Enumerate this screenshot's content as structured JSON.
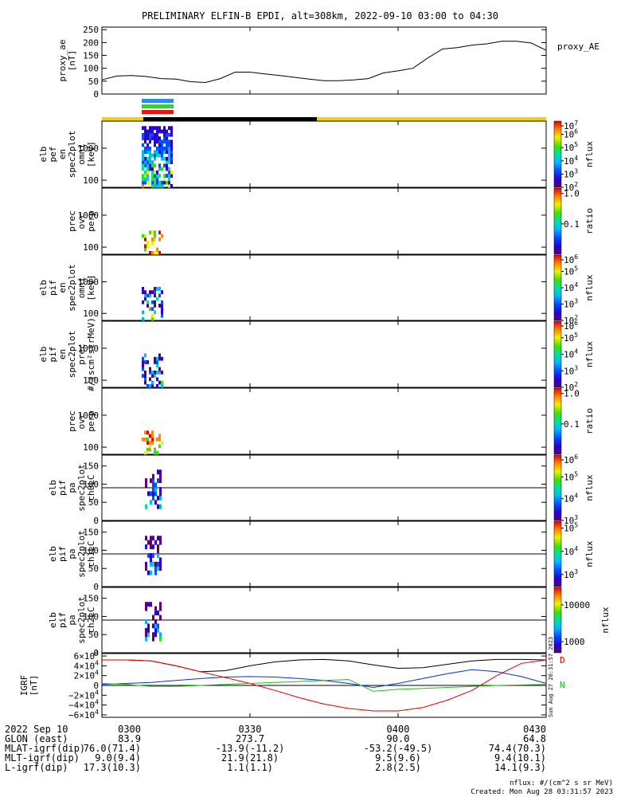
{
  "title": "PRELIMINARY ELFIN-B EPDI, alt=308km, 2022-09-10 03:00 to 04:30",
  "colors": {
    "sunlight": "#f5d000",
    "shadow": "#000000",
    "bar_blue": "#2a8cf0",
    "bar_green": "#22dd22",
    "bar_red": "#ee1111",
    "ae_line": "#000000",
    "bx": "#000000",
    "by": "#0033cc",
    "bz": "#dd0000",
    "bt": "#22bb22"
  },
  "chart_data": [
    {
      "type": "line",
      "name": "proxy_ae",
      "ylabel_lines": [
        "proxy_ae",
        "[nT]"
      ],
      "legend": "proxy_AE",
      "ylim": [
        0,
        260
      ],
      "yticks": [
        "250",
        "200",
        "150",
        "100",
        "50",
        "0"
      ],
      "ytick_values": [
        250,
        200,
        150,
        100,
        50,
        0
      ],
      "x_minutes": [
        0,
        3,
        6,
        9,
        12,
        15,
        18,
        21,
        24,
        27,
        30,
        33,
        36,
        39,
        42,
        45,
        48,
        51,
        54,
        57,
        60,
        63,
        66,
        69,
        72,
        75,
        78,
        81,
        84,
        87,
        90
      ],
      "values": [
        55,
        70,
        72,
        68,
        60,
        58,
        48,
        45,
        60,
        85,
        85,
        78,
        72,
        65,
        58,
        52,
        52,
        55,
        60,
        82,
        90,
        100,
        140,
        175,
        180,
        190,
        195,
        205,
        205,
        198,
        170
      ]
    },
    {
      "type": "heatmap",
      "name": "elb_pef_en_spec2plot_omni",
      "ylabel_lines": [
        "elb",
        "pef",
        "en",
        "spec2plot",
        "omni",
        "[keV]"
      ],
      "yscale": "log",
      "ylim": [
        60,
        7000
      ],
      "yticks": [
        "1000",
        "100"
      ],
      "ytick_values": [
        1000,
        100
      ],
      "colorbar": {
        "label": "nflux",
        "scale": "log",
        "range": [
          100,
          10000000
        ],
        "ticks": [
          {
            "base": "10",
            "exp": "7",
            "value": 10000000
          },
          {
            "base": "10",
            "exp": "6",
            "value": 1000000
          },
          {
            "base": "10",
            "exp": "5",
            "value": 100000
          },
          {
            "base": "10",
            "exp": "4",
            "value": 10000
          },
          {
            "base": "10",
            "exp": "3",
            "value": 1000
          },
          {
            "base": "10",
            "exp": "2",
            "value": 100
          }
        ]
      }
    },
    {
      "type": "heatmap",
      "name": "prec_ovr_perp",
      "ylabel_lines": [
        "prec",
        "ovr",
        "perp"
      ],
      "yscale": "log",
      "ylim": [
        60,
        7000
      ],
      "yticks": [
        "1000",
        "100"
      ],
      "ytick_values": [
        1000,
        100
      ],
      "colorbar": {
        "label": "ratio",
        "scale": "log",
        "range": [
          0.01,
          1.5
        ],
        "ticks": [
          {
            "text": "1.0",
            "value": 1.0
          },
          {
            "text": "0.1",
            "value": 0.1
          }
        ]
      }
    },
    {
      "type": "heatmap",
      "name": "elb_pif_en_spec2plot_omni",
      "ylabel_lines": [
        "elb",
        "pif",
        "en",
        "spec2plot",
        "omni",
        "[keV]"
      ],
      "yscale": "log",
      "ylim": [
        60,
        7000
      ],
      "yticks": [
        "1000",
        "100"
      ],
      "ytick_values": [
        1000,
        100
      ],
      "colorbar": {
        "label": "nflux",
        "scale": "log",
        "range": [
          100,
          1000000
        ],
        "ticks": [
          {
            "base": "10",
            "exp": "6",
            "value": 1000000
          },
          {
            "base": "10",
            "exp": "5",
            "value": 100000
          },
          {
            "base": "10",
            "exp": "4",
            "value": 10000
          },
          {
            "base": "10",
            "exp": "3",
            "value": 1000
          },
          {
            "base": "10",
            "exp": "2",
            "value": 100
          }
        ]
      }
    },
    {
      "type": "heatmap",
      "name": "elb_pif_en_spec2plot_prec",
      "ylabel_lines": [
        "elb",
        "pif",
        "en",
        "spec2plot",
        "prec",
        "#/(scm²strMeV)"
      ],
      "yscale": "log",
      "ylim": [
        60,
        7000
      ],
      "yticks": [
        "1000",
        "100"
      ],
      "ytick_values": [
        1000,
        100
      ],
      "colorbar": {
        "label": "nflux",
        "scale": "log",
        "range": [
          100,
          1000000
        ],
        "ticks": [
          {
            "base": "10",
            "exp": "6",
            "value": 1000000
          },
          {
            "base": "10",
            "exp": "5",
            "value": 100000
          },
          {
            "base": "10",
            "exp": "4",
            "value": 10000
          },
          {
            "base": "10",
            "exp": "3",
            "value": 1000
          },
          {
            "base": "10",
            "exp": "2",
            "value": 100
          }
        ]
      }
    },
    {
      "type": "heatmap",
      "name": "prec_ovr_perp_2",
      "ylabel_lines": [
        "prec",
        "ovr",
        "perp"
      ],
      "yscale": "log",
      "ylim": [
        60,
        7000
      ],
      "yticks": [
        "1000",
        "100"
      ],
      "ytick_values": [
        1000,
        100
      ],
      "colorbar": {
        "label": "ratio",
        "scale": "log",
        "range": [
          0.01,
          1.5
        ],
        "ticks": [
          {
            "text": "1.0",
            "value": 1.0
          },
          {
            "text": "0.1",
            "value": 0.1
          }
        ]
      }
    },
    {
      "type": "heatmap",
      "name": "elb_pif_pa_spec2plot_ch0LC",
      "ylabel_lines": [
        "elb",
        "pif",
        "pa",
        "spec2plot",
        "ch0LC"
      ],
      "ylim": [
        0,
        180
      ],
      "yticks": [
        "150",
        "100",
        "50",
        "0"
      ],
      "ytick_values": [
        150,
        100,
        50,
        0
      ],
      "refline": 90,
      "colorbar": {
        "label": "nflux",
        "scale": "log",
        "range": [
          1000,
          1000000
        ],
        "ticks": [
          {
            "base": "10",
            "exp": "6",
            "value": 1000000
          },
          {
            "base": "10",
            "exp": "5",
            "value": 100000
          },
          {
            "base": "10",
            "exp": "4",
            "value": 10000
          },
          {
            "base": "10",
            "exp": "3",
            "value": 1000
          }
        ]
      }
    },
    {
      "type": "heatmap",
      "name": "elb_pif_pa_spec2plot_ch1LC",
      "ylabel_lines": [
        "elb",
        "pif",
        "pa",
        "spec2plot",
        "ch1LC"
      ],
      "ylim": [
        0,
        180
      ],
      "yticks": [
        "150",
        "100",
        "50",
        "0"
      ],
      "ytick_values": [
        150,
        100,
        50,
        0
      ],
      "refline": 90,
      "colorbar": {
        "label": "nflux",
        "scale": "log",
        "range": [
          300,
          200000
        ],
        "ticks": [
          {
            "base": "10",
            "exp": "5",
            "value": 100000
          },
          {
            "base": "10",
            "exp": "4",
            "value": 10000
          },
          {
            "base": "10",
            "exp": "3",
            "value": 1000
          }
        ]
      }
    },
    {
      "type": "heatmap",
      "name": "elb_pif_pa_spec2plot_ch2LC",
      "ylabel_lines": [
        "elb",
        "pif",
        "pa",
        "spec2plot",
        "ch2LC"
      ],
      "ylim": [
        0,
        180
      ],
      "yticks": [
        "150",
        "100",
        "50",
        "0"
      ],
      "ytick_values": [
        150,
        100,
        50,
        0
      ],
      "refline": 90,
      "colorbar": {
        "label": "nflux",
        "scale": "log",
        "range": [
          500,
          30000
        ],
        "ticks": [
          {
            "text": "10000",
            "value": 10000
          },
          {
            "text": "1000",
            "value": 1000
          }
        ]
      }
    },
    {
      "type": "line",
      "name": "igrf",
      "ylabel_lines": [
        "IGRF",
        "[nT]"
      ],
      "ylim": [
        -65000,
        65000
      ],
      "yticks": [
        {
          "mant": "6",
          "exp": "4",
          "value": 60000
        },
        {
          "mant": "4",
          "exp": "4",
          "value": 40000
        },
        {
          "mant": "2",
          "exp": "4",
          "value": 20000
        },
        {
          "mant": "0",
          "exp": "",
          "value": 0
        },
        {
          "mant": "−2",
          "exp": "4",
          "value": -20000
        },
        {
          "mant": "−4",
          "exp": "4",
          "value": -40000
        },
        {
          "mant": "−6",
          "exp": "4",
          "value": -60000
        }
      ],
      "x_minutes": [
        0,
        5,
        10,
        15,
        20,
        25,
        30,
        35,
        40,
        45,
        50,
        55,
        60,
        65,
        70,
        75,
        80,
        85,
        90
      ],
      "series": [
        {
          "key": "bx",
          "label": "",
          "values": [
            52000,
            52000,
            50000,
            40000,
            28000,
            30000,
            40000,
            48000,
            52000,
            53000,
            50000,
            42000,
            35000,
            36000,
            43000,
            50000,
            53000,
            53000,
            52000
          ]
        },
        {
          "key": "by",
          "label": "",
          "values": [
            2000,
            4000,
            6000,
            10000,
            14000,
            17000,
            18000,
            17000,
            14000,
            10000,
            4000,
            -4000,
            4000,
            14000,
            24000,
            32000,
            28000,
            18000,
            4000
          ]
        },
        {
          "key": "bz",
          "label": "D",
          "values": [
            52000,
            52000,
            50000,
            40000,
            28000,
            16000,
            4000,
            -10000,
            -25000,
            -38000,
            -47000,
            -52000,
            -52000,
            -45000,
            -30000,
            -10000,
            20000,
            45000,
            52000
          ]
        },
        {
          "key": "bt",
          "label": "N",
          "values": [
            4000,
            2000,
            -2000,
            -2000,
            0,
            2000,
            4000,
            6000,
            8000,
            10000,
            12000,
            -12000,
            -8000,
            -6000,
            -4000,
            -2000,
            0,
            1000,
            2000
          ]
        }
      ]
    }
  ],
  "orbit_table": {
    "rows": [
      {
        "label": "2022 Sep 10",
        "values": [
          "0300",
          "0330",
          "0400",
          "0430"
        ]
      },
      {
        "label": "GLON (east)",
        "values": [
          "83.9",
          "273.7",
          "90.0",
          "64.8"
        ]
      },
      {
        "label": "MLAT-igrf(dip)",
        "values": [
          "76.0(71.4)",
          "-13.9(-11.2)",
          "-53.2(-49.5)",
          "74.4(70.3)"
        ]
      },
      {
        "label": "MLT-igrf(dip)",
        "values": [
          "9.0(9.4)",
          "21.9(21.8)",
          "9.5(9.6)",
          "9.4(10.1)"
        ]
      },
      {
        "label": "L-igrf(dip)",
        "values": [
          "17.3(10.3)",
          "1.1(1.1)",
          "2.8(2.5)",
          "14.1(9.3)"
        ]
      }
    ]
  },
  "side_stamp": "Sun Aug 27 20:31:57 2023",
  "footer": {
    "units": "nflux: #/(cm^2 s sr MeV)",
    "created": "Created: Mon Aug 28 03:31:57 2023"
  }
}
